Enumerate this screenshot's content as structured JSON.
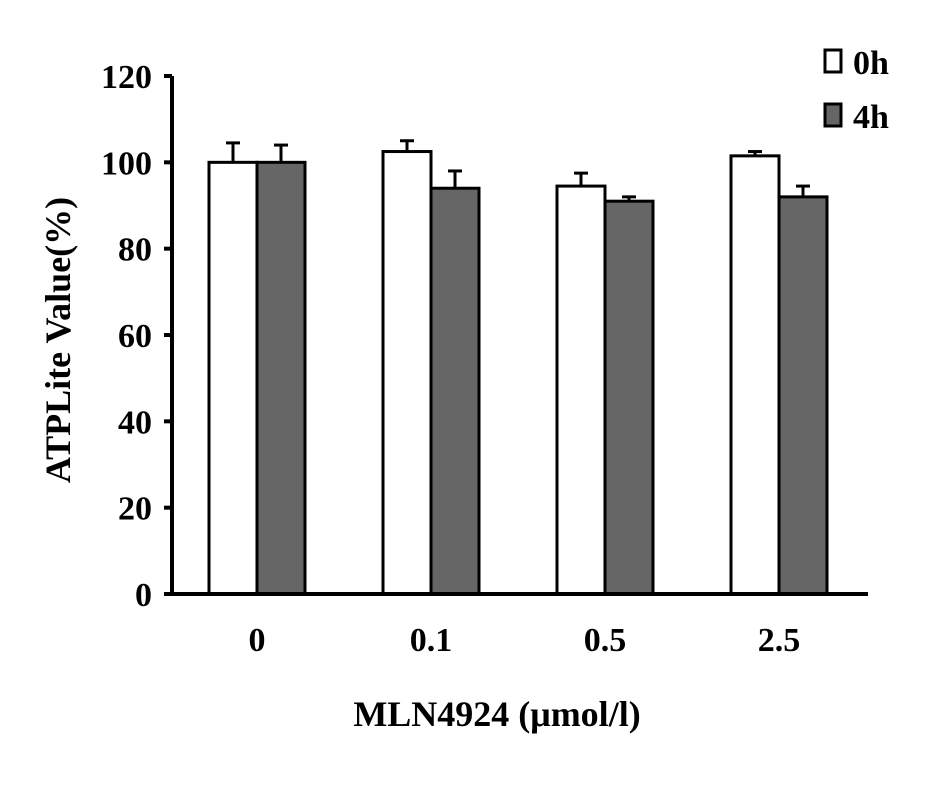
{
  "chart_data": {
    "type": "bar",
    "categories": [
      "0",
      "0.1",
      "0.5",
      "2.5"
    ],
    "series": [
      {
        "name": "0h",
        "values": [
          100,
          102.5,
          94.5,
          101.5
        ],
        "errors": [
          4.5,
          2.5,
          3,
          1
        ],
        "color": "#ffffff"
      },
      {
        "name": "4h",
        "values": [
          100,
          94,
          91,
          92
        ],
        "errors": [
          4,
          4,
          1,
          2.5
        ],
        "color": "#666666"
      }
    ],
    "xlabel": "MLN4924 (μmol/l)",
    "ylabel": "ATPLite Value(%)",
    "ylim": [
      0,
      120
    ],
    "yticks": [
      0,
      20,
      40,
      60,
      80,
      100,
      120
    ],
    "grid": false,
    "legend_position": "top-right"
  }
}
